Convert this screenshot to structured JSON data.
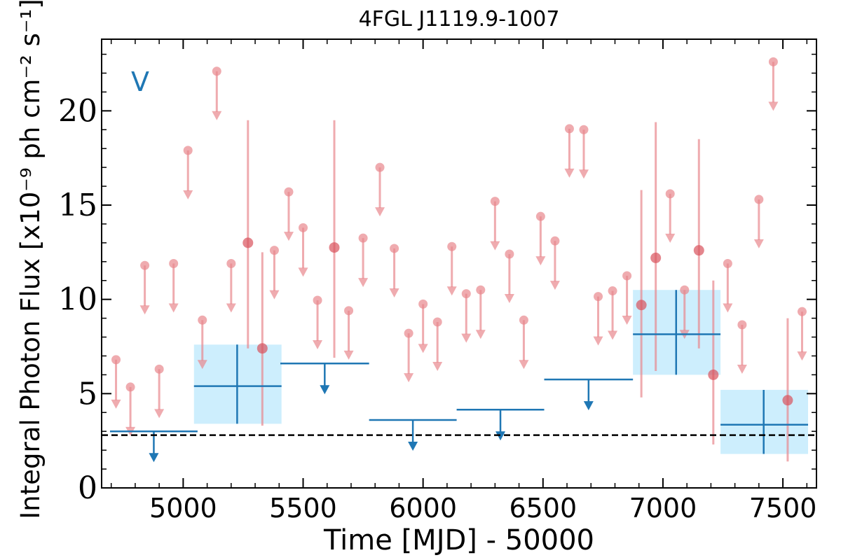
{
  "chart_data": {
    "type": "scatter",
    "title": "4FGL J1119.9-1007",
    "xlabel": "Time [MJD] - 50000",
    "ylabel": "Integral Photon Flux [x10⁻⁹ ph cm⁻² s⁻¹]",
    "xlim": [
      4660,
      7640
    ],
    "ylim": [
      0,
      23.8
    ],
    "xticks": [
      5000,
      5500,
      6000,
      6500,
      7000,
      7500
    ],
    "yticks": [
      0,
      5,
      10,
      15,
      20
    ],
    "panel_label": "V",
    "reference_level": 2.8,
    "colors": {
      "long_bins": "#1f77b4",
      "long_band": "#cdeefd",
      "short_bins": "#e8878d",
      "reference": "#000000"
    },
    "series": [
      {
        "bins": "long",
        "upper_limits": [
          {
            "x_start": 4695,
            "x_end": 5060,
            "y": 3.0
          },
          {
            "x_start": 5405,
            "x_end": 5775,
            "y": 6.6
          },
          {
            "x_start": 5775,
            "x_end": 6140,
            "y": 3.6
          },
          {
            "x_start": 6140,
            "x_end": 6505,
            "y": 4.15
          },
          {
            "x_start": 6505,
            "x_end": 6875,
            "y": 5.75
          }
        ],
        "detections": [
          {
            "x": 5225,
            "x_start": 5045,
            "x_end": 5410,
            "y": 5.4,
            "y_low": 3.4,
            "y_high": 7.6
          },
          {
            "x": 7055,
            "x_start": 6875,
            "x_end": 7240,
            "y": 8.15,
            "y_low": 6.0,
            "y_high": 10.5
          },
          {
            "x": 7420,
            "x_start": 7240,
            "x_end": 7605,
            "y": 3.35,
            "y_low": 1.8,
            "y_high": 5.2
          }
        ]
      },
      {
        "bins": "short",
        "upper_limits": [
          {
            "x": 4720,
            "y": 6.8
          },
          {
            "x": 4780,
            "y": 5.35
          },
          {
            "x": 4840,
            "y": 11.8
          },
          {
            "x": 4900,
            "y": 6.3
          },
          {
            "x": 4960,
            "y": 11.9
          },
          {
            "x": 5020,
            "y": 17.9
          },
          {
            "x": 5080,
            "y": 8.9
          },
          {
            "x": 5140,
            "y": 22.1
          },
          {
            "x": 5200,
            "y": 11.9
          },
          {
            "x": 5380,
            "y": 12.6
          },
          {
            "x": 5440,
            "y": 15.7
          },
          {
            "x": 5500,
            "y": 13.8
          },
          {
            "x": 5560,
            "y": 9.95
          },
          {
            "x": 5690,
            "y": 9.4
          },
          {
            "x": 5750,
            "y": 13.25
          },
          {
            "x": 5820,
            "y": 17.0
          },
          {
            "x": 5880,
            "y": 12.7
          },
          {
            "x": 5940,
            "y": 8.2
          },
          {
            "x": 6000,
            "y": 9.75
          },
          {
            "x": 6060,
            "y": 8.8
          },
          {
            "x": 6120,
            "y": 12.8
          },
          {
            "x": 6180,
            "y": 10.3
          },
          {
            "x": 6240,
            "y": 10.5
          },
          {
            "x": 6300,
            "y": 15.2
          },
          {
            "x": 6360,
            "y": 12.4
          },
          {
            "x": 6420,
            "y": 8.9
          },
          {
            "x": 6490,
            "y": 14.4
          },
          {
            "x": 6550,
            "y": 13.1
          },
          {
            "x": 6610,
            "y": 19.05
          },
          {
            "x": 6670,
            "y": 19.0
          },
          {
            "x": 6730,
            "y": 10.15
          },
          {
            "x": 6790,
            "y": 10.45
          },
          {
            "x": 6850,
            "y": 11.25
          },
          {
            "x": 7030,
            "y": 15.6
          },
          {
            "x": 7090,
            "y": 10.5
          },
          {
            "x": 7270,
            "y": 11.9
          },
          {
            "x": 7330,
            "y": 8.65
          },
          {
            "x": 7400,
            "y": 15.3
          },
          {
            "x": 7460,
            "y": 22.6
          },
          {
            "x": 7580,
            "y": 9.35
          }
        ],
        "detections": [
          {
            "x": 5270,
            "y": 13.0,
            "y_low": 7.4,
            "y_high": 19.5
          },
          {
            "x": 5330,
            "y": 7.4,
            "y_low": 3.3,
            "y_high": 12.5
          },
          {
            "x": 5630,
            "y": 12.75,
            "y_low": 6.9,
            "y_high": 19.5
          },
          {
            "x": 6910,
            "y": 9.7,
            "y_low": 4.8,
            "y_high": 15.8
          },
          {
            "x": 6970,
            "y": 12.2,
            "y_low": 6.2,
            "y_high": 19.4
          },
          {
            "x": 7150,
            "y": 12.6,
            "y_low": 7.4,
            "y_high": 18.5
          },
          {
            "x": 7210,
            "y": 6.0,
            "y_low": 2.3,
            "y_high": 11.0
          },
          {
            "x": 7520,
            "y": 4.65,
            "y_low": 1.4,
            "y_high": 9.0
          }
        ]
      }
    ]
  }
}
